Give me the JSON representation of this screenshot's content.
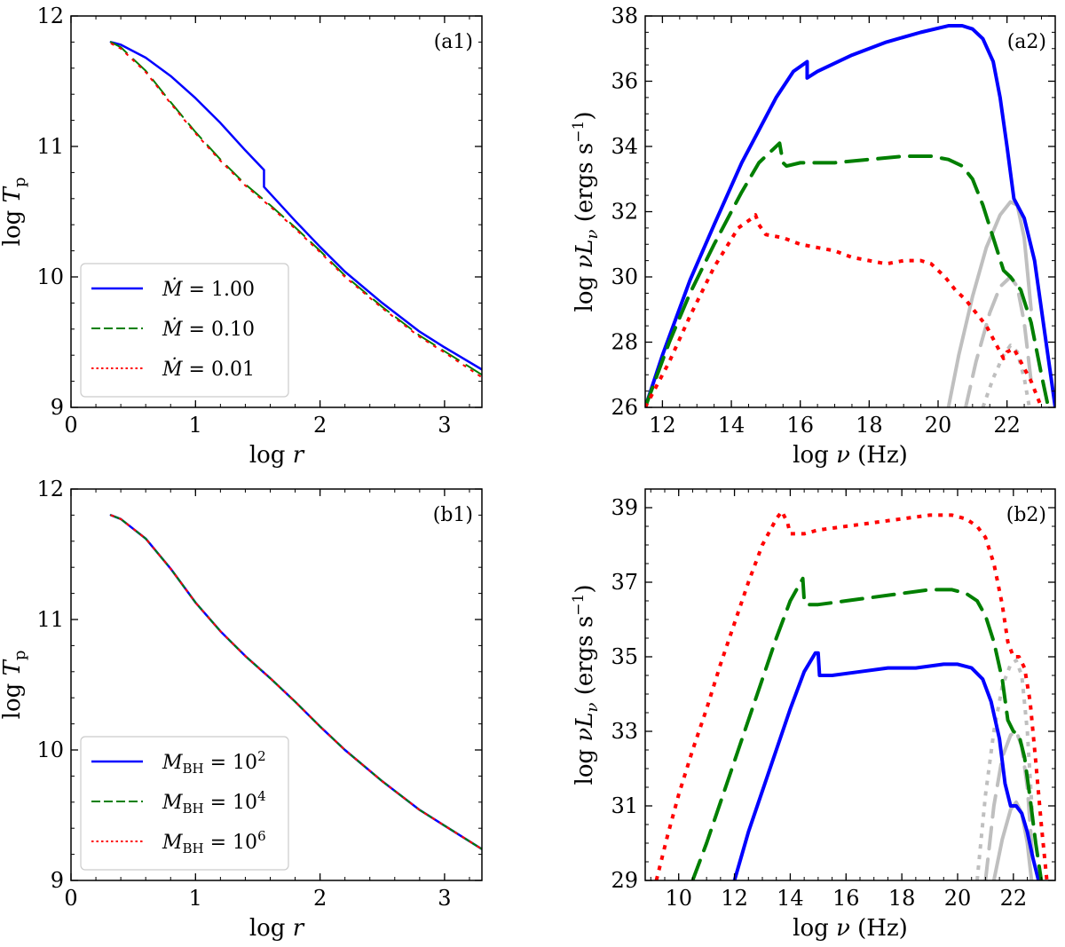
{
  "colors": {
    "blue": "#0000ff",
    "green": "#007f00",
    "red": "#ff0000",
    "gray": "#bfbfbf"
  },
  "chart_data": [
    {
      "id": "a1",
      "type": "line",
      "panel_label": "(a1)",
      "xlabel": "log r",
      "ylabel": "log T_p",
      "xlim": [
        0,
        3.3
      ],
      "ylim": [
        9,
        12
      ],
      "xticks": [
        0,
        1,
        2,
        3
      ],
      "yticks": [
        9,
        10,
        11,
        12
      ],
      "legend_position": "lower-left",
      "series": [
        {
          "name": "Ṁ = 1.00",
          "color": "blue",
          "style": "solid",
          "width": 2.5,
          "x": [
            0.32,
            0.4,
            0.6,
            0.8,
            1.0,
            1.2,
            1.4,
            1.55,
            1.55,
            1.8,
            2.0,
            2.2,
            2.5,
            2.8,
            3.0,
            3.3
          ],
          "y": [
            11.8,
            11.78,
            11.68,
            11.54,
            11.37,
            11.18,
            10.97,
            10.82,
            10.69,
            10.43,
            10.23,
            10.04,
            9.8,
            9.58,
            9.46,
            9.29
          ]
        },
        {
          "name": "Ṁ = 0.10",
          "color": "green",
          "style": "dashed",
          "width": 2,
          "x": [
            0.32,
            0.4,
            0.6,
            0.8,
            1.0,
            1.2,
            1.4,
            1.6,
            1.8,
            2.0,
            2.2,
            2.5,
            2.8,
            3.0,
            3.3
          ],
          "y": [
            11.8,
            11.76,
            11.58,
            11.34,
            11.11,
            10.9,
            10.71,
            10.55,
            10.38,
            10.2,
            10.01,
            9.77,
            9.55,
            9.43,
            9.25
          ]
        },
        {
          "name": "Ṁ = 0.01",
          "color": "red",
          "style": "dotted",
          "width": 2,
          "x": [
            0.32,
            0.4,
            0.6,
            0.8,
            1.0,
            1.2,
            1.4,
            1.6,
            1.8,
            2.0,
            2.2,
            2.5,
            2.8,
            3.0,
            3.3
          ],
          "y": [
            11.79,
            11.75,
            11.57,
            11.33,
            11.1,
            10.89,
            10.7,
            10.54,
            10.37,
            10.19,
            10.0,
            9.76,
            9.54,
            9.42,
            9.23
          ]
        }
      ]
    },
    {
      "id": "a2",
      "type": "line",
      "panel_label": "(a2)",
      "xlabel": "log ν (Hz)",
      "ylabel": "log νL_ν (ergs s⁻¹)",
      "xlim": [
        11.5,
        23.4
      ],
      "ylim": [
        26,
        38
      ],
      "xticks": [
        12,
        14,
        16,
        18,
        20,
        22
      ],
      "yticks": [
        26,
        28,
        30,
        32,
        34,
        36,
        38
      ],
      "series": [
        {
          "name": "Ṁ = 1.00",
          "color": "blue",
          "style": "solid",
          "width": 4,
          "x": [
            11.5,
            12.0,
            12.8,
            13.5,
            14.3,
            14.8,
            15.3,
            15.8,
            16.2,
            16.2,
            16.5,
            17.5,
            18.5,
            19.5,
            20.3,
            20.7,
            21.0,
            21.3,
            21.6,
            21.8,
            22.0,
            22.2,
            22.5,
            22.8,
            23.0,
            23.2,
            23.4
          ],
          "y": [
            26.0,
            27.6,
            29.9,
            31.6,
            33.5,
            34.5,
            35.5,
            36.3,
            36.6,
            36.1,
            36.3,
            36.8,
            37.2,
            37.5,
            37.7,
            37.7,
            37.6,
            37.3,
            36.6,
            35.5,
            34.0,
            32.4,
            31.8,
            30.5,
            29.0,
            27.5,
            26.0
          ]
        },
        {
          "name": "Ṁ = 0.10",
          "color": "green",
          "style": "dashed",
          "width": 4,
          "x": [
            11.5,
            12.2,
            12.8,
            13.5,
            14.3,
            14.8,
            15.2,
            15.4,
            15.5,
            15.6,
            16.0,
            17.0,
            18.0,
            19.0,
            19.8,
            20.3,
            20.7,
            21.0,
            21.3,
            21.6,
            21.9,
            22.1,
            22.4,
            22.7,
            23.0,
            23.2
          ],
          "y": [
            26.0,
            28.0,
            29.5,
            31.0,
            32.6,
            33.5,
            33.9,
            34.1,
            33.5,
            33.4,
            33.5,
            33.5,
            33.6,
            33.7,
            33.7,
            33.6,
            33.4,
            33.0,
            32.2,
            31.2,
            30.2,
            30.0,
            29.6,
            28.6,
            27.0,
            26.0
          ]
        },
        {
          "name": "Ṁ = 0.01",
          "color": "red",
          "style": "dotted",
          "width": 4,
          "x": [
            11.5,
            12.2,
            12.8,
            13.5,
            14.2,
            14.6,
            14.7,
            14.8,
            15.0,
            15.5,
            16.0,
            16.5,
            17.0,
            17.5,
            18.0,
            18.5,
            19.0,
            19.5,
            19.8,
            20.2,
            20.5,
            20.8,
            21.1,
            21.4,
            21.7,
            21.9,
            22.0,
            22.2,
            22.4,
            22.7,
            23.0
          ],
          "y": [
            26.0,
            27.4,
            28.8,
            30.3,
            31.5,
            31.8,
            31.9,
            31.6,
            31.3,
            31.2,
            31.0,
            30.9,
            30.8,
            30.6,
            30.5,
            30.4,
            30.5,
            30.5,
            30.4,
            30.0,
            29.6,
            29.3,
            28.9,
            28.5,
            27.9,
            27.5,
            27.7,
            27.8,
            27.4,
            26.8,
            26.0
          ]
        },
        {
          "name": "Ṁ = 1.00 (gray)",
          "color": "gray",
          "style": "solid",
          "width": 4,
          "x": [
            20.3,
            20.6,
            21.0,
            21.4,
            21.8,
            22.1,
            22.3,
            22.5,
            22.7
          ],
          "y": [
            26.0,
            27.6,
            29.4,
            30.9,
            31.9,
            32.3,
            32.2,
            31.2,
            29.0
          ]
        },
        {
          "name": "Ṁ = 0.10 (gray)",
          "color": "gray",
          "style": "dashed",
          "width": 4,
          "x": [
            20.8,
            21.1,
            21.5,
            21.8,
            22.1,
            22.3,
            22.5,
            22.7
          ],
          "y": [
            26.0,
            27.4,
            28.9,
            29.7,
            30.0,
            29.7,
            28.6,
            26.8
          ]
        },
        {
          "name": "Ṁ = 0.01 (gray)",
          "color": "gray",
          "style": "dotted",
          "width": 4,
          "x": [
            21.3,
            21.6,
            21.9,
            22.1,
            22.3,
            22.5,
            22.65
          ],
          "y": [
            26.0,
            26.9,
            27.6,
            27.9,
            27.7,
            26.9,
            26.0
          ]
        }
      ]
    },
    {
      "id": "b1",
      "type": "line",
      "panel_label": "(b1)",
      "xlabel": "log r",
      "ylabel": "log T_p",
      "xlim": [
        0,
        3.3
      ],
      "ylim": [
        9,
        12
      ],
      "xticks": [
        0,
        1,
        2,
        3
      ],
      "yticks": [
        9,
        10,
        11,
        12
      ],
      "legend_position": "lower-left",
      "series": [
        {
          "name": "M_BH = 10²",
          "color": "blue",
          "style": "solid",
          "width": 2.5,
          "x": [
            0.32,
            0.4,
            0.6,
            0.8,
            1.0,
            1.2,
            1.4,
            1.6,
            1.8,
            2.0,
            2.2,
            2.5,
            2.8,
            3.0,
            3.3
          ],
          "y": [
            11.8,
            11.77,
            11.62,
            11.39,
            11.13,
            10.91,
            10.72,
            10.55,
            10.37,
            10.18,
            10.0,
            9.76,
            9.54,
            9.42,
            9.24
          ]
        },
        {
          "name": "M_BH = 10⁴",
          "color": "green",
          "style": "dashed",
          "width": 2,
          "x": [
            0.32,
            0.4,
            0.6,
            0.8,
            1.0,
            1.2,
            1.4,
            1.6,
            1.8,
            2.0,
            2.2,
            2.5,
            2.8,
            3.0,
            3.3
          ],
          "y": [
            11.8,
            11.77,
            11.62,
            11.39,
            11.13,
            10.91,
            10.72,
            10.55,
            10.37,
            10.18,
            10.0,
            9.76,
            9.54,
            9.42,
            9.24
          ]
        },
        {
          "name": "M_BH = 10⁶",
          "color": "red",
          "style": "dotted",
          "width": 2,
          "x": [
            0.32,
            0.4,
            0.6,
            0.8,
            1.0,
            1.2,
            1.4,
            1.6,
            1.8,
            2.0,
            2.2,
            2.5,
            2.8,
            3.0,
            3.3
          ],
          "y": [
            11.8,
            11.77,
            11.62,
            11.39,
            11.13,
            10.91,
            10.72,
            10.55,
            10.37,
            10.18,
            10.0,
            9.76,
            9.54,
            9.42,
            9.24
          ]
        }
      ]
    },
    {
      "id": "b2",
      "type": "line",
      "panel_label": "(b2)",
      "xlabel": "log ν (Hz)",
      "ylabel": "log νL_ν (ergs s⁻¹)",
      "xlim": [
        8.8,
        23.5
      ],
      "ylim": [
        29,
        39.5
      ],
      "xticks": [
        10,
        12,
        14,
        16,
        18,
        20,
        22
      ],
      "yticks": [
        29,
        31,
        33,
        35,
        37,
        39
      ],
      "series": [
        {
          "name": "M_BH = 10²",
          "color": "blue",
          "style": "solid",
          "width": 4,
          "x": [
            12.0,
            12.5,
            13.0,
            13.5,
            14.0,
            14.5,
            14.9,
            15.0,
            15.05,
            15.1,
            15.5,
            16.5,
            17.5,
            18.5,
            19.5,
            20.0,
            20.5,
            20.9,
            21.2,
            21.5,
            21.7,
            21.9,
            22.1,
            22.3,
            22.5,
            22.7,
            22.9
          ],
          "y": [
            29.0,
            30.3,
            31.4,
            32.5,
            33.6,
            34.6,
            35.1,
            35.1,
            34.5,
            34.5,
            34.5,
            34.6,
            34.7,
            34.7,
            34.8,
            34.8,
            34.7,
            34.4,
            33.8,
            32.8,
            31.6,
            31.0,
            31.0,
            30.8,
            30.3,
            29.6,
            29.0
          ]
        },
        {
          "name": "M_BH = 10⁴",
          "color": "green",
          "style": "dashed",
          "width": 4,
          "x": [
            10.5,
            11.0,
            11.5,
            12.0,
            12.5,
            13.0,
            13.5,
            14.0,
            14.3,
            14.45,
            14.5,
            14.6,
            15.0,
            16.0,
            17.0,
            18.0,
            19.0,
            19.8,
            20.3,
            20.7,
            21.0,
            21.3,
            21.6,
            21.8,
            22.0,
            22.2,
            22.4,
            22.6,
            22.8,
            23.0
          ],
          "y": [
            29.0,
            30.0,
            31.1,
            32.2,
            33.3,
            34.4,
            35.5,
            36.5,
            36.9,
            37.1,
            36.5,
            36.4,
            36.4,
            36.5,
            36.6,
            36.7,
            36.8,
            36.8,
            36.7,
            36.5,
            36.1,
            35.4,
            34.4,
            33.3,
            33.0,
            32.9,
            32.3,
            31.2,
            30.0,
            29.0
          ]
        },
        {
          "name": "M_BH = 10⁶",
          "color": "red",
          "style": "dotted",
          "width": 4,
          "x": [
            9.2,
            9.6,
            10.0,
            10.5,
            11.0,
            11.5,
            12.0,
            12.5,
            13.0,
            13.5,
            13.7,
            13.9,
            14.0,
            14.5,
            15.0,
            16.0,
            17.0,
            18.0,
            19.0,
            19.8,
            20.3,
            20.7,
            21.0,
            21.3,
            21.6,
            21.8,
            22.0,
            22.2,
            22.4,
            22.6,
            22.8,
            23.0,
            23.2
          ],
          "y": [
            29.0,
            30.2,
            31.3,
            32.5,
            33.6,
            34.8,
            35.9,
            37.0,
            38.0,
            38.7,
            38.9,
            38.6,
            38.3,
            38.3,
            38.4,
            38.5,
            38.6,
            38.7,
            38.8,
            38.8,
            38.7,
            38.5,
            38.2,
            37.5,
            36.4,
            35.4,
            35.0,
            35.0,
            34.7,
            33.8,
            32.2,
            30.5,
            29.0
          ]
        },
        {
          "name": "M_BH = 10² (gray)",
          "color": "gray",
          "style": "solid",
          "width": 4,
          "x": [
            21.3,
            21.6,
            21.9,
            22.1,
            22.3,
            22.5,
            22.65
          ],
          "y": [
            29.0,
            30.1,
            30.9,
            31.1,
            30.8,
            30.0,
            29.0
          ]
        },
        {
          "name": "M_BH = 10⁴ (gray)",
          "color": "gray",
          "style": "dashed",
          "width": 4,
          "x": [
            21.0,
            21.3,
            21.6,
            21.9,
            22.1,
            22.3,
            22.5,
            22.7
          ],
          "y": [
            29.0,
            31.0,
            32.3,
            32.9,
            33.0,
            32.6,
            31.5,
            29.5
          ]
        },
        {
          "name": "M_BH = 10⁶ (gray)",
          "color": "gray",
          "style": "dotted",
          "width": 4,
          "x": [
            20.7,
            21.0,
            21.3,
            21.6,
            21.9,
            22.1,
            22.3,
            22.5,
            22.7
          ],
          "y": [
            29.0,
            31.3,
            33.0,
            34.2,
            34.8,
            34.9,
            34.5,
            33.0,
            30.5
          ]
        }
      ]
    }
  ],
  "legends": {
    "a1": [
      "Ṁ = 1.00",
      "Ṁ = 0.10",
      "Ṁ = 0.01"
    ],
    "b1": [
      "M_BH = 10²",
      "M_BH = 10⁴",
      "M_BH = 10⁶"
    ]
  }
}
